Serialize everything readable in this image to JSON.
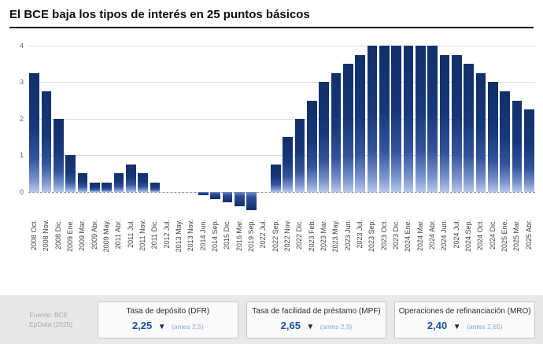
{
  "header": {
    "title": "El BCE baja los tipos de interés en 25 puntos básicos"
  },
  "chart_data": {
    "type": "bar",
    "title": "El BCE baja los tipos de interés en 25 puntos básicos",
    "xlabel": "",
    "ylabel": "",
    "ylim": [
      -0.7,
      4.3
    ],
    "yticks": [
      0,
      1,
      2,
      3,
      4
    ],
    "grid": true,
    "legend": false,
    "bar_color_top": "#122f68",
    "bar_color_bottom": "#b9c7e8",
    "categories": [
      "2008 Oct.",
      "2008 Nov.",
      "2008 Dic.",
      "2009 Ene.",
      "2009 Mar.",
      "2009 Abr.",
      "2009 May.",
      "2011 Abr.",
      "2011 Jul.",
      "2011 Nov.",
      "2011 Dic.",
      "2012 Jul.",
      "2013 May.",
      "2013 Nov.",
      "2014 Jun.",
      "2014 Sep.",
      "2015 Dic.",
      "2016 Mar.",
      "2019 Sep.",
      "2022 Jul.",
      "2022 Sep.",
      "2022 Nov.",
      "2022 Dic.",
      "2023 Feb.",
      "2023 Mar.",
      "2023 May.",
      "2023 Jun.",
      "2023 Jul.",
      "2023 Sep.",
      "2023 Oct.",
      "2023 Dic.",
      "2024 Ene.",
      "2024 Mar.",
      "2024 Abr.",
      "2024 Jun.",
      "2024 Jul.",
      "2024 Sep.",
      "2024 Oct.",
      "2024 Dic.",
      "2025 Ene.",
      "2025 Mar.",
      "2025 Abr."
    ],
    "values": [
      3.25,
      2.75,
      2.0,
      1.0,
      0.5,
      0.25,
      0.25,
      0.5,
      0.75,
      0.5,
      0.25,
      0.0,
      0.0,
      0.0,
      -0.1,
      -0.2,
      -0.3,
      -0.4,
      -0.5,
      0.0,
      0.75,
      1.5,
      2.0,
      2.5,
      3.0,
      3.25,
      3.5,
      3.75,
      4.0,
      4.0,
      4.0,
      4.0,
      4.0,
      4.0,
      3.75,
      3.75,
      3.5,
      3.25,
      3.0,
      2.75,
      2.5,
      2.25
    ]
  },
  "footer": {
    "source_line1": "Fuente: BCE",
    "source_line2": "· EpData (2025)",
    "boxes": [
      {
        "label": "Tasa de depósito (DFR)",
        "value": "2,25",
        "previous": "(antes 2,5)"
      },
      {
        "label": "Tasa de facilidad de préstamo (MPF)",
        "value": "2,65",
        "previous": "(antes 2,9)"
      },
      {
        "label": "Operaciones de refinanciación (MRO)",
        "value": "2,40",
        "previous": "(antes 2,65)"
      }
    ]
  },
  "icons": {
    "down_triangle": "▼"
  },
  "colors": {
    "bar_dark": "#122f68",
    "accent_value": "#1d4f9e",
    "triangle": "#132c54",
    "footer_band": "#e8e8e8"
  }
}
